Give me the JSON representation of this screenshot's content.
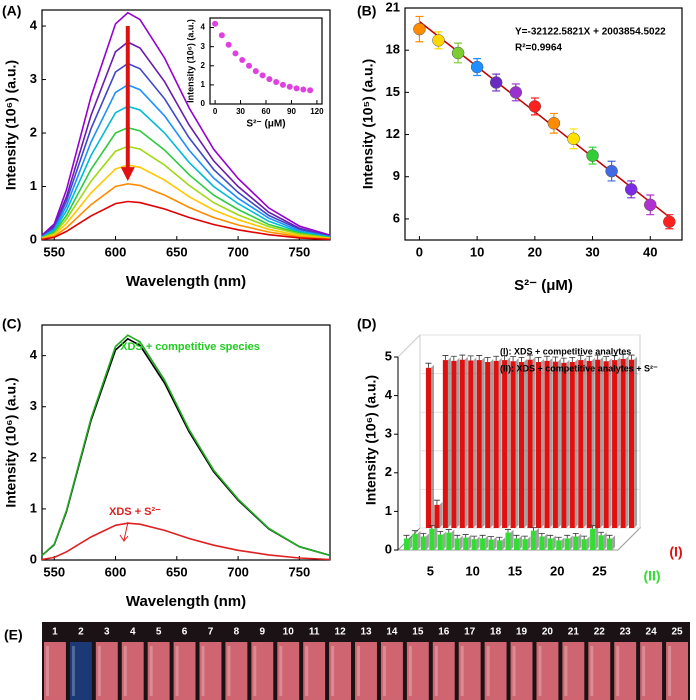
{
  "chart_data": [
    {
      "type": "line",
      "panel_label": "(A)",
      "x_label": "Wavelength (nm)",
      "y_label": "Intensity (10⁶) (a.u.)",
      "x": [
        540,
        550,
        560,
        580,
        600,
        610,
        620,
        640,
        660,
        680,
        700,
        725,
        750,
        775
      ],
      "xlim": [
        540,
        775
      ],
      "xticks": [
        550,
        600,
        650,
        700,
        750
      ],
      "ylim": [
        0,
        4.3
      ],
      "yticks": [
        0,
        1,
        2,
        3,
        4
      ],
      "series": [
        {
          "color": "#9400d3",
          "values": [
            0.09,
            0.3,
            0.94,
            2.68,
            4.04,
            4.25,
            4.12,
            3.4,
            2.47,
            1.7,
            1.15,
            0.6,
            0.26,
            0.09
          ]
        },
        {
          "color": "#6a1bb0",
          "values": [
            0.07,
            0.26,
            0.81,
            2.33,
            3.52,
            3.7,
            3.59,
            2.96,
            2.15,
            1.48,
            1.0,
            0.52,
            0.22,
            0.07
          ]
        },
        {
          "color": "#3f48cc",
          "values": [
            0.07,
            0.23,
            0.73,
            2.08,
            3.14,
            3.3,
            3.2,
            2.64,
            1.91,
            1.32,
            0.89,
            0.46,
            0.2,
            0.07
          ]
        },
        {
          "color": "#1e90ff",
          "values": [
            0.06,
            0.2,
            0.64,
            1.83,
            2.76,
            2.9,
            2.81,
            2.32,
            1.68,
            1.16,
            0.78,
            0.41,
            0.17,
            0.06
          ]
        },
        {
          "color": "#00bcd4",
          "values": [
            0.05,
            0.18,
            0.55,
            1.58,
            2.38,
            2.5,
            2.43,
            2.0,
            1.45,
            1.0,
            0.68,
            0.35,
            0.15,
            0.05
          ]
        },
        {
          "color": "#2ecc40",
          "values": [
            0.04,
            0.15,
            0.46,
            1.32,
            2.0,
            2.1,
            2.04,
            1.68,
            1.22,
            0.84,
            0.57,
            0.29,
            0.13,
            0.04
          ]
        },
        {
          "color": "#a0d911",
          "values": [
            0.04,
            0.12,
            0.39,
            1.1,
            1.66,
            1.75,
            1.7,
            1.4,
            1.02,
            0.7,
            0.47,
            0.25,
            0.11,
            0.04
          ]
        },
        {
          "color": "#ffc800",
          "values": [
            0.03,
            0.1,
            0.31,
            0.88,
            1.33,
            1.4,
            1.36,
            1.12,
            0.81,
            0.56,
            0.38,
            0.2,
            0.08,
            0.03
          ]
        },
        {
          "color": "#ff8c00",
          "values": [
            0.02,
            0.07,
            0.23,
            0.66,
            1.0,
            1.05,
            1.02,
            0.84,
            0.61,
            0.42,
            0.28,
            0.15,
            0.06,
            0.02
          ]
        },
        {
          "color": "#e00000",
          "values": [
            0.01,
            0.05,
            0.16,
            0.45,
            0.68,
            0.72,
            0.7,
            0.58,
            0.42,
            0.29,
            0.19,
            0.1,
            0.04,
            0.01
          ]
        }
      ]
    },
    {
      "type": "scatter",
      "x_label": "S²⁻ (μM)",
      "y_label": "Intensity (10⁶) (a.u.)",
      "x": [
        0,
        8,
        16,
        24,
        32,
        40,
        48,
        56,
        64,
        72,
        80,
        88,
        96,
        104,
        112
      ],
      "values": [
        4.2,
        3.6,
        3.1,
        2.65,
        2.3,
        2.0,
        1.72,
        1.5,
        1.3,
        1.15,
        1.0,
        0.9,
        0.82,
        0.76,
        0.72
      ],
      "color": "#e040e0",
      "xlim": [
        -6,
        126
      ],
      "xticks": [
        0,
        30,
        60,
        90,
        120
      ],
      "ylim": [
        0,
        4.5
      ],
      "yticks": [
        0,
        1,
        2,
        3,
        4
      ]
    },
    {
      "type": "scatter",
      "panel_label": "(B)",
      "x_label": "S²⁻ (μM)",
      "y_label": "Intensity (10⁵) (a.u.)",
      "x": [
        0,
        3.3,
        6.7,
        10,
        13.3,
        16.7,
        20,
        23.3,
        26.7,
        30,
        33.3,
        36.7,
        40,
        43.3
      ],
      "values": [
        19.5,
        18.7,
        17.8,
        16.8,
        15.7,
        15.0,
        14.0,
        12.8,
        11.7,
        10.5,
        9.4,
        8.1,
        7.0,
        5.8
      ],
      "errors": [
        0.9,
        0.6,
        0.7,
        0.6,
        0.6,
        0.6,
        0.6,
        0.7,
        0.7,
        0.6,
        0.7,
        0.6,
        0.7,
        0.5
      ],
      "colors": [
        "#ff8c00",
        "#ffd700",
        "#7ccd32",
        "#1e90ff",
        "#6a2bc4",
        "#9932cc",
        "#ff2020",
        "#ff8c00",
        "#ffe000",
        "#32cd32",
        "#4169e1",
        "#7b2be2",
        "#b030d0",
        "#ff2020"
      ],
      "fit": {
        "color": "#c00000",
        "x": [
          0,
          44
        ],
        "values": [
          20.04,
          5.91
        ]
      },
      "annotations": [
        "Y=-32122.5821X + 2003854.5022",
        "R²=0.9964"
      ],
      "xlim": [
        -2.5,
        45.5
      ],
      "xticks": [
        0,
        10,
        20,
        30,
        40
      ],
      "ylim": [
        4.5,
        21
      ],
      "yticks": [
        6,
        9,
        12,
        15,
        18,
        21
      ]
    },
    {
      "type": "line",
      "panel_label": "(C)",
      "x_label": "Wavelength (nm)",
      "y_label": "Intensity (10⁶) (a.u.)",
      "x": [
        540,
        550,
        560,
        580,
        600,
        610,
        620,
        640,
        660,
        680,
        700,
        725,
        750,
        775
      ],
      "xlim": [
        540,
        775
      ],
      "xticks": [
        550,
        600,
        650,
        700,
        750
      ],
      "ylim": [
        0,
        4.6
      ],
      "yticks": [
        0,
        1,
        2,
        3,
        4
      ],
      "series": [
        {
          "color": "#000000",
          "values": [
            0.09,
            0.3,
            0.95,
            2.73,
            4.11,
            4.33,
            4.2,
            3.46,
            2.51,
            1.73,
            1.17,
            0.61,
            0.26,
            0.09
          ]
        },
        {
          "color": "#22aa22",
          "values": [
            0.09,
            0.31,
            0.97,
            2.77,
            4.18,
            4.4,
            4.27,
            3.52,
            2.55,
            1.76,
            1.19,
            0.62,
            0.26,
            0.09
          ]
        },
        {
          "color": "#e02020",
          "values": [
            0.01,
            0.05,
            0.16,
            0.45,
            0.68,
            0.72,
            0.7,
            0.58,
            0.42,
            0.29,
            0.19,
            0.1,
            0.04,
            0.01
          ]
        }
      ],
      "annotations": [
        {
          "text": "XDS + competitive species",
          "color": "#22cc22"
        },
        {
          "text": "XDS + S²⁻",
          "color": "#e02020"
        }
      ]
    },
    {
      "type": "bar3d",
      "panel_label": "(D)",
      "y_label": "Intensity (10⁶) (a.u.)",
      "x": [
        1,
        2,
        3,
        4,
        5,
        6,
        7,
        8,
        9,
        10,
        11,
        12,
        13,
        14,
        15,
        16,
        17,
        18,
        19,
        20,
        21,
        22,
        23,
        24,
        25
      ],
      "xlim": [
        0,
        26
      ],
      "xticks": [
        5,
        10,
        15,
        20,
        25
      ],
      "ylim": [
        0,
        5
      ],
      "yticks": [
        0,
        1,
        2,
        3,
        4,
        5
      ],
      "legend": [
        "(I): XDS + competitive analytes",
        "(II): XDS + competitive analytes + S²⁻"
      ],
      "series": [
        {
          "name": "(I)",
          "color": "#e01010",
          "values": [
            4.15,
            0.6,
            4.35,
            4.33,
            4.36,
            4.34,
            4.35,
            4.3,
            4.33,
            4.35,
            4.32,
            4.3,
            4.36,
            4.3,
            4.33,
            4.31,
            4.28,
            4.3,
            4.35,
            4.33,
            4.36,
            4.32,
            4.35,
            4.38,
            4.36
          ],
          "errors": [
            0.12,
            0.12,
            0.12,
            0.12,
            0.12,
            0.12,
            0.12,
            0.12,
            0.12,
            0.12,
            0.12,
            0.12,
            0.12,
            0.12,
            0.12,
            0.12,
            0.12,
            0.12,
            0.12,
            0.12,
            0.12,
            0.12,
            0.12,
            0.12,
            0.12
          ]
        },
        {
          "name": "(II)",
          "color": "#33dd33",
          "values": [
            0.3,
            0.42,
            0.35,
            0.55,
            0.4,
            0.45,
            0.3,
            0.32,
            0.28,
            0.3,
            0.27,
            0.25,
            0.45,
            0.3,
            0.28,
            0.5,
            0.35,
            0.3,
            0.25,
            0.3,
            0.35,
            0.28,
            0.55,
            0.38,
            0.3
          ],
          "errors": [
            0.08,
            0.08,
            0.08,
            0.08,
            0.08,
            0.08,
            0.08,
            0.08,
            0.08,
            0.08,
            0.08,
            0.08,
            0.08,
            0.08,
            0.08,
            0.08,
            0.08,
            0.08,
            0.08,
            0.08,
            0.08,
            0.08,
            0.08,
            0.08,
            0.08
          ]
        }
      ]
    }
  ],
  "photo": {
    "label": "(E)",
    "tubes": [
      "1",
      "2",
      "3",
      "4",
      "5",
      "6",
      "7",
      "8",
      "9",
      "10",
      "11",
      "12",
      "13",
      "14",
      "15",
      "16",
      "17",
      "18",
      "19",
      "20",
      "21",
      "22",
      "23",
      "24",
      "25"
    ]
  }
}
